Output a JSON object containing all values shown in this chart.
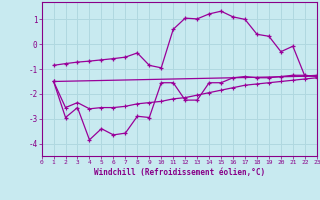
{
  "xlabel": "Windchill (Refroidissement éolien,°C)",
  "background_color": "#c8eaf0",
  "grid_color": "#b0d8e0",
  "line_color": "#990099",
  "text_color": "#880088",
  "xlim": [
    0,
    23
  ],
  "ylim": [
    -4.5,
    1.7
  ],
  "xticks": [
    0,
    1,
    2,
    3,
    4,
    5,
    6,
    7,
    8,
    9,
    10,
    11,
    12,
    13,
    14,
    15,
    16,
    17,
    18,
    19,
    20,
    21,
    22,
    23
  ],
  "yticks": [
    -4,
    -3,
    -2,
    -1,
    0,
    1
  ],
  "line1_x": [
    1,
    2,
    3,
    4,
    5,
    6,
    7,
    8,
    9,
    10,
    11,
    12,
    13,
    14,
    15,
    16,
    17,
    18,
    19,
    20,
    21,
    22,
    23
  ],
  "line1_y": [
    -0.85,
    -0.78,
    -0.72,
    -0.68,
    -0.63,
    -0.58,
    -0.52,
    -0.35,
    -0.85,
    -0.95,
    0.6,
    1.05,
    1.02,
    1.22,
    1.33,
    1.1,
    1.0,
    0.4,
    0.32,
    -0.3,
    -0.08,
    -1.28,
    -1.25
  ],
  "line2_x": [
    1,
    2,
    3,
    4,
    5,
    6,
    7,
    8,
    9,
    10,
    11,
    12,
    13,
    14,
    15,
    16,
    17,
    18,
    19,
    20,
    21,
    22,
    23
  ],
  "line2_y": [
    -1.5,
    -2.95,
    -2.55,
    -3.85,
    -3.4,
    -3.65,
    -3.58,
    -2.9,
    -2.95,
    -1.55,
    -1.55,
    -2.25,
    -2.25,
    -1.55,
    -1.55,
    -1.35,
    -1.3,
    -1.35,
    -1.35,
    -1.3,
    -1.25,
    -1.25,
    -1.3
  ],
  "line3_x": [
    1,
    2,
    3,
    4,
    5,
    6,
    7,
    8,
    9,
    10,
    11,
    12,
    13,
    14,
    15,
    16,
    17,
    18,
    19,
    20,
    21,
    22,
    23
  ],
  "line3_y": [
    -1.5,
    -2.55,
    -2.35,
    -2.6,
    -2.55,
    -2.55,
    -2.5,
    -2.4,
    -2.35,
    -2.3,
    -2.2,
    -2.15,
    -2.05,
    -1.95,
    -1.85,
    -1.75,
    -1.65,
    -1.6,
    -1.55,
    -1.5,
    -1.45,
    -1.4,
    -1.35
  ],
  "line4_x": [
    1,
    23
  ],
  "line4_y": [
    -1.5,
    -1.28
  ]
}
